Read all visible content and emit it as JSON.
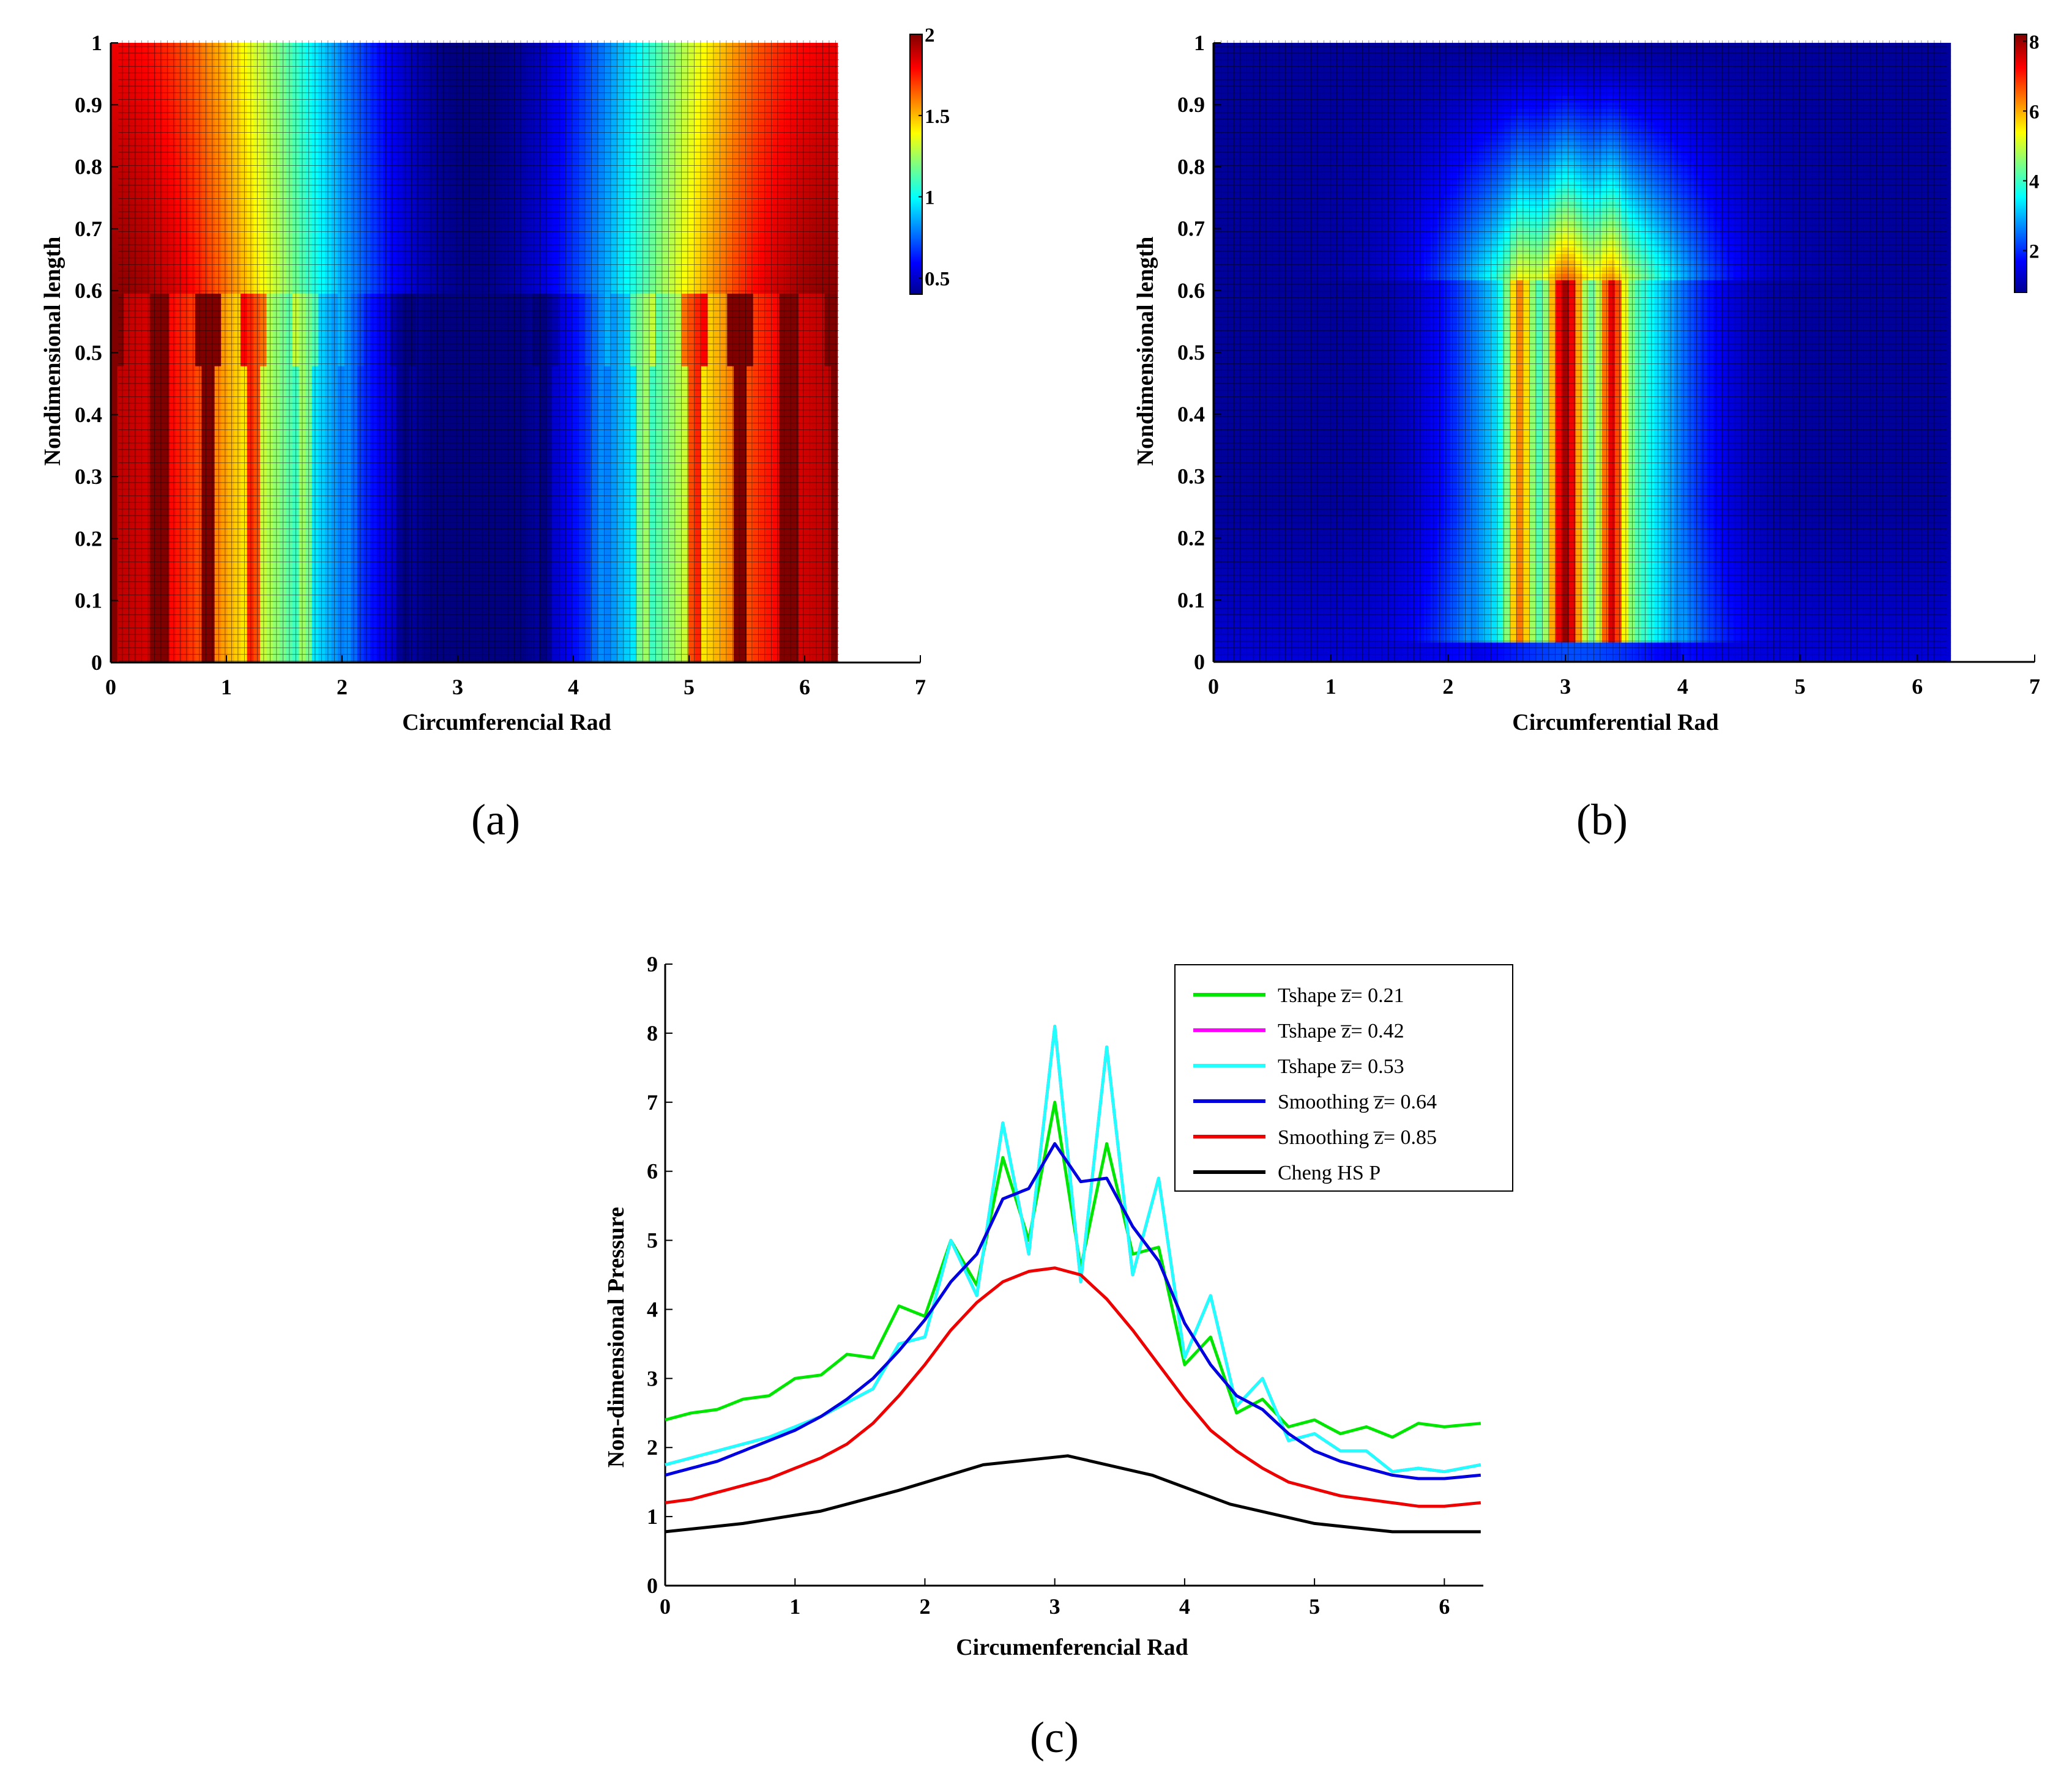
{
  "colors": {
    "green": "#00e600",
    "magenta": "#ff00ff",
    "cyan": "#22ffff",
    "blue": "#0000e0",
    "red": "#ee0000",
    "black": "#000000"
  },
  "captions": {
    "a": "(a)",
    "b": "(b)",
    "c": "(c)"
  },
  "chart_data": [
    {
      "id": "a",
      "type": "heatmap",
      "title": "",
      "xlabel": "Circumferencial Rad",
      "ylabel": "Nondimensional length",
      "xlim": [
        0,
        7
      ],
      "ylim": [
        0,
        1
      ],
      "xticks": [
        "0",
        "1",
        "2",
        "3",
        "4",
        "5",
        "6",
        "7"
      ],
      "yticks": [
        "0",
        "0.1",
        "0.2",
        "0.3",
        "0.4",
        "0.5",
        "0.6",
        "0.7",
        "0.8",
        "0.9",
        "1"
      ],
      "data_x_range": [
        0,
        6.2832
      ],
      "colorbar": {
        "min": 0.4,
        "max": 2.0,
        "ticks": [
          "0.5",
          "1",
          "1.5",
          "2"
        ],
        "tick_values": [
          0.5,
          1.0,
          1.5,
          2.0
        ]
      },
      "texture": {
        "description_values": "pressure distribution with 15 T-shaped grooves below z=0.6",
        "groove_count": 15,
        "groove_region_z": [
          0,
          0.6
        ],
        "groove_head_z": [
          0.48,
          0.6
        ]
      }
    },
    {
      "id": "b",
      "type": "heatmap",
      "title": "",
      "xlabel": "Circumferential Rad",
      "ylabel": "Nondimensional length",
      "xlim": [
        0,
        7
      ],
      "ylim": [
        0,
        1
      ],
      "xticks": [
        "0",
        "1",
        "2",
        "3",
        "4",
        "5",
        "6",
        "7"
      ],
      "yticks": [
        "0",
        "0.1",
        "0.2",
        "0.3",
        "0.4",
        "0.5",
        "0.6",
        "0.7",
        "0.8",
        "0.9",
        "1"
      ],
      "data_x_range": [
        0,
        6.2832
      ],
      "colorbar": {
        "min": 0.8,
        "max": 8.2,
        "ticks": [
          "2",
          "4",
          "6",
          "8"
        ],
        "tick_values": [
          2,
          4,
          6,
          8
        ]
      }
    },
    {
      "id": "c",
      "type": "line",
      "title": "",
      "xlabel": "Circumenferencial Rad",
      "ylabel": "Non-dimensional Pressure",
      "xlim": [
        0,
        6.3
      ],
      "ylim": [
        0,
        9
      ],
      "xticks": [
        "0",
        "1",
        "2",
        "3",
        "4",
        "5",
        "6"
      ],
      "yticks": [
        "0",
        "1",
        "2",
        "3",
        "4",
        "5",
        "6",
        "7",
        "8",
        "9"
      ],
      "legend_position": "top-right",
      "series": [
        {
          "name": "Tshape z̅= 0.21",
          "color": "#00e600",
          "x": [
            0,
            0.2,
            0.4,
            0.6,
            0.8,
            1.0,
            1.2,
            1.4,
            1.6,
            1.8,
            2.0,
            2.2,
            2.4,
            2.6,
            2.8,
            3.0,
            3.2,
            3.4,
            3.6,
            3.8,
            4.0,
            4.2,
            4.4,
            4.6,
            4.8,
            5.0,
            5.2,
            5.4,
            5.6,
            5.8,
            6.0,
            6.28
          ],
          "values": [
            2.4,
            2.5,
            2.55,
            2.7,
            2.75,
            3.0,
            3.05,
            3.35,
            3.3,
            4.05,
            3.9,
            5.0,
            4.35,
            6.2,
            5.0,
            7.0,
            4.6,
            6.4,
            4.8,
            4.9,
            3.2,
            3.6,
            2.5,
            2.7,
            2.3,
            2.4,
            2.2,
            2.3,
            2.15,
            2.35,
            2.3,
            2.35
          ]
        },
        {
          "name": "Tshape z̅= 0.42",
          "color": "#ff00ff",
          "x": [
            0,
            0.2,
            0.4,
            0.6,
            0.8,
            1.0,
            1.2,
            1.4,
            1.6,
            1.8,
            2.0,
            2.2,
            2.4,
            2.6,
            2.8,
            3.0,
            3.2,
            3.4,
            3.6,
            3.8,
            4.0,
            4.2,
            4.4,
            4.6,
            4.8,
            5.0,
            5.2,
            5.4,
            5.6,
            5.8,
            6.0,
            6.28
          ],
          "values": [
            1.75,
            1.85,
            1.95,
            2.05,
            2.15,
            2.3,
            2.45,
            2.65,
            2.85,
            3.5,
            3.6,
            5.0,
            4.2,
            6.7,
            4.8,
            8.1,
            4.4,
            7.8,
            4.5,
            5.9,
            3.3,
            4.2,
            2.6,
            3.0,
            2.1,
            2.2,
            1.95,
            1.95,
            1.65,
            1.7,
            1.65,
            1.75
          ]
        },
        {
          "name": "Tshape z̅= 0.53",
          "color": "#22ffff",
          "x": [
            0,
            0.2,
            0.4,
            0.6,
            0.8,
            1.0,
            1.2,
            1.4,
            1.6,
            1.8,
            2.0,
            2.2,
            2.4,
            2.6,
            2.8,
            3.0,
            3.2,
            3.4,
            3.6,
            3.8,
            4.0,
            4.2,
            4.4,
            4.6,
            4.8,
            5.0,
            5.2,
            5.4,
            5.6,
            5.8,
            6.0,
            6.28
          ],
          "values": [
            1.75,
            1.85,
            1.95,
            2.05,
            2.15,
            2.3,
            2.45,
            2.65,
            2.85,
            3.5,
            3.6,
            5.0,
            4.2,
            6.7,
            4.8,
            8.1,
            4.4,
            7.8,
            4.5,
            5.9,
            3.3,
            4.2,
            2.6,
            3.0,
            2.1,
            2.2,
            1.95,
            1.95,
            1.65,
            1.7,
            1.65,
            1.75
          ]
        },
        {
          "name": "Smoothing z̅= 0.64",
          "color": "#0000e0",
          "x": [
            0,
            0.2,
            0.4,
            0.6,
            0.8,
            1.0,
            1.2,
            1.4,
            1.6,
            1.8,
            2.0,
            2.2,
            2.4,
            2.6,
            2.8,
            3.0,
            3.2,
            3.4,
            3.6,
            3.8,
            4.0,
            4.2,
            4.4,
            4.6,
            4.8,
            5.0,
            5.2,
            5.4,
            5.6,
            5.8,
            6.0,
            6.28
          ],
          "values": [
            1.6,
            1.7,
            1.8,
            1.95,
            2.1,
            2.25,
            2.45,
            2.7,
            3.0,
            3.4,
            3.85,
            4.4,
            4.8,
            5.6,
            5.75,
            6.4,
            5.85,
            5.9,
            5.2,
            4.7,
            3.8,
            3.2,
            2.75,
            2.55,
            2.2,
            1.95,
            1.8,
            1.7,
            1.6,
            1.55,
            1.55,
            1.6
          ]
        },
        {
          "name": "Smoothing z̅= 0.85",
          "color": "#ee0000",
          "x": [
            0,
            0.2,
            0.4,
            0.6,
            0.8,
            1.0,
            1.2,
            1.4,
            1.6,
            1.8,
            2.0,
            2.2,
            2.4,
            2.6,
            2.8,
            3.0,
            3.2,
            3.4,
            3.6,
            3.8,
            4.0,
            4.2,
            4.4,
            4.6,
            4.8,
            5.0,
            5.2,
            5.4,
            5.6,
            5.8,
            6.0,
            6.28
          ],
          "values": [
            1.2,
            1.25,
            1.35,
            1.45,
            1.55,
            1.7,
            1.85,
            2.05,
            2.35,
            2.75,
            3.2,
            3.7,
            4.1,
            4.4,
            4.55,
            4.6,
            4.5,
            4.15,
            3.7,
            3.2,
            2.7,
            2.25,
            1.95,
            1.7,
            1.5,
            1.4,
            1.3,
            1.25,
            1.2,
            1.15,
            1.15,
            1.2
          ]
        },
        {
          "name": "Cheng HS P",
          "color": "#000000",
          "x": [
            0,
            0.6,
            1.2,
            1.8,
            2.45,
            3.1,
            3.75,
            4.35,
            5.0,
            5.6,
            6.28
          ],
          "values": [
            0.78,
            0.9,
            1.08,
            1.38,
            1.75,
            1.88,
            1.6,
            1.18,
            0.9,
            0.78,
            0.78
          ]
        }
      ]
    }
  ]
}
